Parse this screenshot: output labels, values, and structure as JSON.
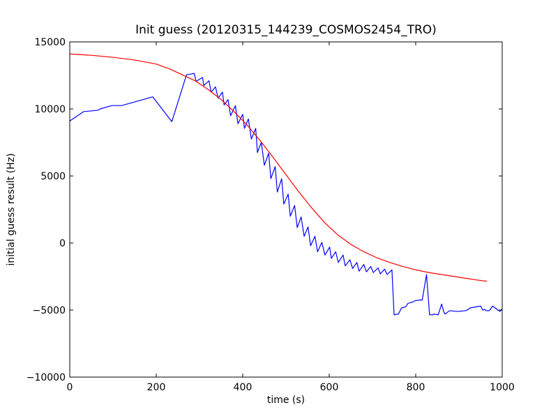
{
  "chart_data": {
    "type": "line",
    "title": "Init guess (20120315_144239_COSMOS2454_TRO)",
    "xlabel": "time (s)",
    "ylabel": "initial guess result (Hz)",
    "xlim": [
      0,
      1000
    ],
    "ylim": [
      -10000,
      15000
    ],
    "xticks": [
      0,
      200,
      400,
      600,
      800,
      1000
    ],
    "yticks": [
      -10000,
      -5000,
      0,
      5000,
      10000,
      15000
    ],
    "grid": false,
    "series": [
      {
        "color": "#0000ff",
        "x": [
          0,
          32,
          65,
          70,
          97,
          120,
          192,
          236,
          270,
          280,
          288,
          292,
          307,
          310,
          322,
          327,
          337,
          343,
          353,
          357,
          366,
          372,
          383,
          389,
          400,
          404,
          413,
          420,
          430,
          434,
          443,
          450,
          460,
          465,
          475,
          480,
          490,
          495,
          505,
          510,
          520,
          526,
          535,
          542,
          551,
          557,
          567,
          573,
          583,
          590,
          601,
          605,
          615,
          621,
          632,
          637,
          648,
          654,
          664,
          669,
          680,
          686,
          696,
          702,
          713,
          718,
          728,
          734,
          745,
          750,
          760,
          767,
          777,
          782,
          793,
          799,
          810,
          815,
          825,
          832,
          840,
          842,
          852,
          860,
          865,
          868,
          878,
          897,
          915,
          922,
          925,
          950,
          955,
          960,
          963,
          967,
          970,
          978,
          990,
          995,
          1000
        ],
        "y": [
          9100,
          9800,
          9900,
          10000,
          10250,
          10250,
          10900,
          9050,
          12550,
          12600,
          12650,
          12050,
          12350,
          11750,
          12100,
          11250,
          11650,
          10800,
          11250,
          10300,
          10700,
          9500,
          10250,
          8900,
          9600,
          8550,
          9250,
          7750,
          8550,
          6750,
          7500,
          5800,
          6700,
          4800,
          5700,
          3800,
          4800,
          2900,
          3650,
          2000,
          2800,
          1150,
          1950,
          500,
          1200,
          -200,
          500,
          -650,
          50,
          -900,
          -300,
          -1150,
          -650,
          -1450,
          -900,
          -1700,
          -1250,
          -1900,
          -1450,
          -2100,
          -1600,
          -2150,
          -1750,
          -2200,
          -1850,
          -2300,
          -1950,
          -2350,
          -2000,
          -5350,
          -5300,
          -4850,
          -4750,
          -4500,
          -4400,
          -4300,
          -4250,
          -4250,
          -2350,
          -5350,
          -5350,
          -5300,
          -5350,
          -4550,
          -5150,
          -5300,
          -5050,
          -5100,
          -5050,
          -4950,
          -4850,
          -4700,
          -5000,
          -4950,
          -5050,
          -5050,
          -5050,
          -4700,
          -5000,
          -5100,
          -4900
        ],
        "name": ""
      },
      {
        "color": "#ff0000",
        "x": [
          0,
          50,
          100,
          150,
          200,
          230,
          260,
          290,
          320,
          350,
          380,
          410,
          440,
          470,
          500,
          530,
          560,
          590,
          620,
          650,
          680,
          710,
          740,
          770,
          800,
          830,
          860,
          890,
          920,
          940,
          965
        ],
        "y": [
          14100,
          14000,
          13850,
          13650,
          13350,
          13000,
          12550,
          12100,
          11450,
          10700,
          9800,
          8800,
          7650,
          6400,
          5100,
          3800,
          2600,
          1500,
          600,
          -100,
          -650,
          -1100,
          -1450,
          -1750,
          -2000,
          -2200,
          -2350,
          -2500,
          -2650,
          -2750,
          -2850
        ],
        "name": ""
      }
    ]
  }
}
